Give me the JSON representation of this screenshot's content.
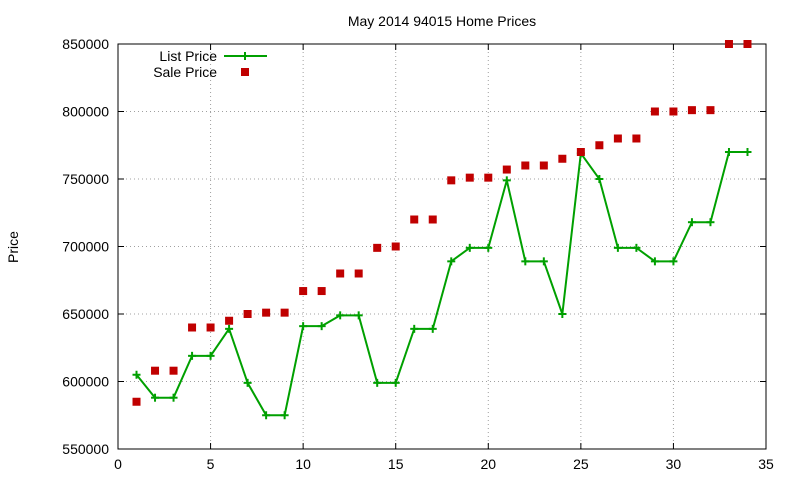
{
  "chart_data": {
    "type": "line",
    "title": "May 2014 94015 Home Prices",
    "xlabel": "",
    "ylabel": "Price",
    "xlim": [
      0,
      35
    ],
    "ylim": [
      550000,
      850000
    ],
    "x_ticks": [
      0,
      5,
      10,
      15,
      20,
      25,
      30,
      35
    ],
    "y_ticks": [
      550000,
      600000,
      650000,
      700000,
      750000,
      800000,
      850000
    ],
    "grid": true,
    "legend_position": "top-left",
    "series": [
      {
        "name": "List Price",
        "style": "linespoints",
        "marker": "plus",
        "color": "#00a000",
        "x": [
          1,
          2,
          3,
          4,
          5,
          6,
          7,
          8,
          9,
          10,
          11,
          12,
          13,
          14,
          15,
          16,
          17,
          18,
          19,
          20,
          21,
          22,
          23,
          24,
          25,
          26,
          27,
          28,
          29,
          30,
          31,
          32,
          33,
          34
        ],
        "values": [
          605000,
          588000,
          588000,
          619000,
          619000,
          639000,
          599000,
          575000,
          575000,
          641000,
          641000,
          649000,
          649000,
          599000,
          599000,
          639000,
          639000,
          689000,
          699000,
          699000,
          749000,
          689000,
          689000,
          650000,
          769000,
          750000,
          699000,
          699000,
          689000,
          689000,
          718000,
          718000,
          770000,
          770000
        ]
      },
      {
        "name": "Sale Price",
        "style": "points",
        "marker": "square",
        "color": "#c00000",
        "x": [
          1,
          2,
          3,
          4,
          5,
          6,
          7,
          8,
          9,
          10,
          11,
          12,
          13,
          14,
          15,
          16,
          17,
          18,
          19,
          20,
          21,
          22,
          23,
          24,
          25,
          26,
          27,
          28,
          29,
          30,
          31,
          32,
          33,
          34
        ],
        "values": [
          585000,
          608000,
          608000,
          640000,
          640000,
          645000,
          650000,
          651000,
          651000,
          667000,
          667000,
          680000,
          680000,
          699000,
          700000,
          720000,
          720000,
          749000,
          751000,
          751000,
          757000,
          760000,
          760000,
          765000,
          770000,
          775000,
          780000,
          780000,
          800000,
          800000,
          801000,
          801000,
          850000,
          850000
        ]
      }
    ]
  }
}
